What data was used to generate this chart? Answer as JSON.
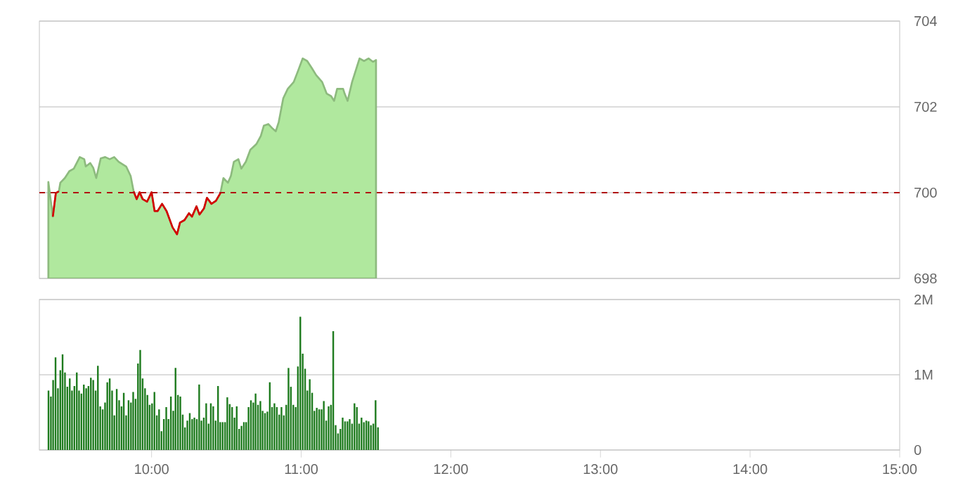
{
  "chart_data": [
    {
      "type": "area",
      "xlim": [
        9.25,
        15
      ],
      "ylim": [
        698,
        704
      ],
      "yticks": [
        698,
        700,
        702,
        704
      ],
      "grid": "y",
      "tick_labels": "y",
      "series": [
        {
          "type": "area",
          "color": "#b0e89e",
          "x": [
            9.31,
            9.34,
            9.36,
            9.38,
            9.39,
            9.42,
            9.45,
            9.48,
            9.52,
            9.55,
            9.56,
            9.59,
            9.61,
            9.63,
            9.66,
            9.69,
            9.72,
            9.75,
            9.78,
            9.83,
            9.86,
            9.88,
            9.9,
            9.92,
            9.94,
            9.97,
            10.0,
            10.02,
            10.04,
            10.07,
            10.1,
            10.14,
            10.17,
            10.19,
            10.22,
            10.25,
            10.27,
            10.3,
            10.32,
            10.35,
            10.37,
            10.4,
            10.43,
            10.46,
            10.48,
            10.51,
            10.53,
            10.55,
            10.58,
            10.6,
            10.63,
            10.66,
            10.7,
            10.73,
            10.75,
            10.78,
            10.81,
            10.83,
            10.85,
            10.88,
            10.91,
            10.93,
            10.95,
            10.98,
            11.01,
            11.04,
            11.07,
            11.1,
            11.14,
            11.17,
            11.2,
            11.22,
            11.24,
            11.28,
            11.29,
            11.31,
            11.34,
            11.39,
            11.42,
            11.45,
            11.48,
            11.5
          ],
          "values": [
            700.25,
            699.44,
            699.99,
            700.03,
            700.23,
            700.34,
            700.5,
            700.56,
            700.83,
            700.78,
            700.61,
            700.69,
            700.58,
            700.34,
            700.8,
            700.83,
            700.78,
            700.83,
            700.72,
            700.61,
            700.39,
            700.03,
            699.85,
            700.01,
            699.85,
            699.79,
            700.01,
            699.57,
            699.57,
            699.74,
            699.57,
            699.19,
            699.03,
            699.3,
            699.36,
            699.52,
            699.44,
            699.68,
            699.49,
            699.63,
            699.88,
            699.74,
            699.81,
            699.99,
            700.34,
            700.23,
            700.39,
            700.72,
            700.78,
            700.56,
            700.72,
            701.0,
            701.13,
            701.32,
            701.56,
            701.6,
            701.49,
            701.43,
            701.65,
            702.2,
            702.42,
            702.5,
            702.58,
            702.85,
            703.13,
            703.07,
            702.91,
            702.74,
            702.58,
            702.31,
            702.25,
            702.14,
            702.42,
            702.42,
            702.31,
            702.14,
            702.58,
            703.13,
            703.07,
            703.13,
            703.05,
            703.09
          ]
        },
        {
          "type": "line",
          "color": "#d40000",
          "x": [
            9.34,
            9.36,
            9.38,
            9.6,
            9.88,
            9.9,
            9.92,
            9.94,
            9.97,
            10.0,
            10.02,
            10.04,
            10.07,
            10.1,
            10.14,
            10.17,
            10.19,
            10.22,
            10.25,
            10.27,
            10.3,
            10.32,
            10.35,
            10.37,
            10.4,
            10.43,
            10.46
          ],
          "values": [
            699.44,
            699.99,
            700.03,
            null,
            700.03,
            699.85,
            700.01,
            699.85,
            699.79,
            700.01,
            699.57,
            699.57,
            699.74,
            699.57,
            699.19,
            699.03,
            699.3,
            699.36,
            699.52,
            699.44,
            699.68,
            699.49,
            699.63,
            699.88,
            699.74,
            699.81,
            699.99
          ]
        }
      ],
      "ref_lines": [
        {
          "axis": "y",
          "value": 700,
          "color": "#b01010",
          "line_style": "dashed"
        }
      ]
    },
    {
      "type": "bar",
      "xlim": [
        9.25,
        15
      ],
      "ylim": [
        0,
        2
      ],
      "grid": "y",
      "xticks": [
        {
          "value": 10,
          "label": "10:00"
        },
        {
          "value": 11,
          "label": "11:00"
        },
        {
          "value": 12,
          "label": "12:00"
        },
        {
          "value": 13,
          "label": "13:00"
        },
        {
          "value": 14,
          "label": "14:00"
        },
        {
          "value": 15,
          "label": "15:00"
        }
      ],
      "yticks": [
        0,
        {
          "value": 1,
          "label": "1M"
        },
        {
          "value": 2,
          "label": "2M"
        }
      ],
      "series": [
        {
          "color": "#1e7b1e",
          "x": [
            9.311,
            9.327,
            9.342,
            9.358,
            9.374,
            9.39,
            9.405,
            9.421,
            9.437,
            9.453,
            9.468,
            9.484,
            9.5,
            9.515,
            9.531,
            9.547,
            9.563,
            9.578,
            9.594,
            9.61,
            9.626,
            9.641,
            9.657,
            9.673,
            9.689,
            9.704,
            9.72,
            9.736,
            9.751,
            9.767,
            9.783,
            9.799,
            9.814,
            9.83,
            9.846,
            9.862,
            9.877,
            9.893,
            9.909,
            9.924,
            9.94,
            9.956,
            9.972,
            9.987,
            10.003,
            10.019,
            10.035,
            10.05,
            10.066,
            10.082,
            10.098,
            10.113,
            10.129,
            10.145,
            10.16,
            10.176,
            10.192,
            10.208,
            10.223,
            10.239,
            10.255,
            10.271,
            10.286,
            10.302,
            10.318,
            10.333,
            10.349,
            10.365,
            10.381,
            10.396,
            10.412,
            10.428,
            10.444,
            10.459,
            10.475,
            10.491,
            10.506,
            10.522,
            10.538,
            10.554,
            10.569,
            10.585,
            10.601,
            10.617,
            10.632,
            10.648,
            10.664,
            10.68,
            10.695,
            10.711,
            10.727,
            10.742,
            10.758,
            10.774,
            10.79,
            10.805,
            10.821,
            10.837,
            10.853,
            10.868,
            10.884,
            10.9,
            10.915,
            10.931,
            10.947,
            10.963,
            10.978,
            10.994,
            11.01,
            11.026,
            11.041,
            11.057,
            11.073,
            11.088,
            11.104,
            11.12,
            11.136,
            11.151,
            11.167,
            11.183,
            11.199,
            11.214,
            11.23,
            11.246,
            11.262,
            11.277,
            11.293,
            11.309,
            11.324,
            11.34,
            11.356,
            11.372,
            11.387,
            11.403,
            11.419,
            11.435,
            11.45,
            11.466,
            11.482,
            11.497,
            11.513
          ],
          "values": [
            0.79,
            0.71,
            0.93,
            1.23,
            0.82,
            1.06,
            1.27,
            1.03,
            0.84,
            0.95,
            0.79,
            0.85,
            1.03,
            0.79,
            0.75,
            0.87,
            0.82,
            0.85,
            0.96,
            0.93,
            0.79,
            1.12,
            0.58,
            0.54,
            0.63,
            0.9,
            0.95,
            0.79,
            0.46,
            0.81,
            0.66,
            0.58,
            0.76,
            0.46,
            0.66,
            0.63,
            0.77,
            0.68,
            1.15,
            1.33,
            0.95,
            0.82,
            0.73,
            0.6,
            0.62,
            0.77,
            0.46,
            0.54,
            0.25,
            0.41,
            0.57,
            0.41,
            0.71,
            0.52,
            1.09,
            0.73,
            0.71,
            0.47,
            0.3,
            0.39,
            0.49,
            0.41,
            0.43,
            0.41,
            0.87,
            0.39,
            0.43,
            0.62,
            0.35,
            0.62,
            0.58,
            0.39,
            0.85,
            0.37,
            0.37,
            0.37,
            0.7,
            0.61,
            0.57,
            0.43,
            0.58,
            0.28,
            0.32,
            0.37,
            0.37,
            0.57,
            0.66,
            0.63,
            0.75,
            0.6,
            0.65,
            0.52,
            0.49,
            0.51,
            0.9,
            0.57,
            0.62,
            0.57,
            0.47,
            0.57,
            0.46,
            0.6,
            1.09,
            0.84,
            0.6,
            0.57,
            1.11,
            1.77,
            1.28,
            1.08,
            0.79,
            0.94,
            0.76,
            0.52,
            0.56,
            0.54,
            0.54,
            0.65,
            0.39,
            0.58,
            0.6,
            1.58,
            0.33,
            0.22,
            0.28,
            0.43,
            0.38,
            0.38,
            0.41,
            0.35,
            0.62,
            0.57,
            0.35,
            0.43,
            0.37,
            0.39,
            0.38,
            0.33,
            0.35,
            0.66,
            0.3
          ]
        }
      ]
    }
  ]
}
